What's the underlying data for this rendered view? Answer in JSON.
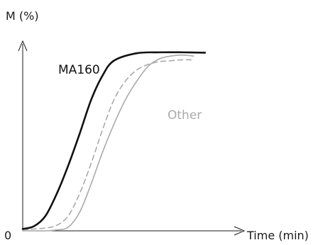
{
  "chart_data": {
    "type": "line",
    "ylabel": "M (%)",
    "xlabel": "Time (min)",
    "origin_label": "0",
    "grid": false,
    "legend": "none",
    "series": [
      {
        "name": "MA160",
        "color": "#111111",
        "style": "solid",
        "points": [
          [
            0,
            1.0
          ],
          [
            5,
            2.5
          ],
          [
            10,
            8
          ],
          [
            15,
            20
          ],
          [
            20,
            35
          ],
          [
            25,
            52
          ],
          [
            30,
            70
          ],
          [
            35,
            83
          ],
          [
            40,
            91
          ],
          [
            50,
            95
          ],
          [
            60,
            95.5
          ],
          [
            70,
            95.5
          ],
          [
            80,
            95.3
          ]
        ]
      },
      {
        "name": "Other",
        "color": "#aaaaaa",
        "style": "solid",
        "points": [
          [
            0,
            0
          ],
          [
            5,
            0
          ],
          [
            10,
            0
          ],
          [
            15,
            0.5
          ],
          [
            20,
            2
          ],
          [
            25,
            10
          ],
          [
            30,
            25
          ],
          [
            35,
            42
          ],
          [
            40,
            57
          ],
          [
            45,
            70
          ],
          [
            50,
            80
          ],
          [
            55,
            88
          ],
          [
            60,
            92
          ],
          [
            65,
            93.5
          ],
          [
            70,
            94
          ],
          [
            75,
            93.5
          ]
        ]
      },
      {
        "name": "",
        "color": "#aaaaaa",
        "style": "dashed",
        "points": [
          [
            0,
            0.5
          ],
          [
            5,
            1
          ],
          [
            10,
            1.5
          ],
          [
            15,
            3
          ],
          [
            20,
            8
          ],
          [
            25,
            20
          ],
          [
            30,
            36
          ],
          [
            35,
            54
          ],
          [
            40,
            70
          ],
          [
            45,
            80
          ],
          [
            50,
            86
          ],
          [
            55,
            89
          ],
          [
            60,
            90.5
          ],
          [
            65,
            91
          ],
          [
            70,
            91.5
          ],
          [
            75,
            91.5
          ]
        ]
      }
    ],
    "xlim": [
      0,
      95
    ],
    "ylim": [
      0,
      100
    ]
  }
}
